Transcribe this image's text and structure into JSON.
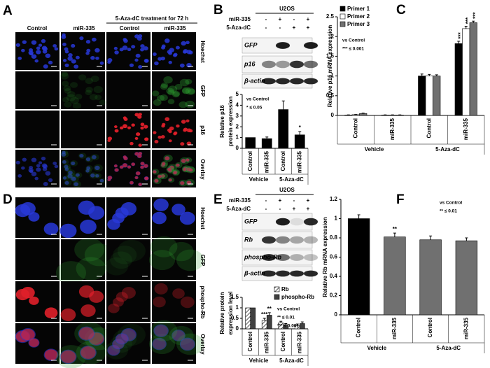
{
  "panel_labels": [
    "A",
    "B",
    "C",
    "D",
    "E",
    "F"
  ],
  "panel_a": {
    "column_labels": [
      "Control",
      "miR-335",
      "Control",
      "miR-335"
    ],
    "treatment_label": "5-Aza-dC treatment for 72 h",
    "row_labels": [
      "Hoechst",
      "GFP",
      "p16",
      "Overlay"
    ]
  },
  "panel_b": {
    "cell_line": "U2OS",
    "conditions": [
      {
        "name": "miR-335",
        "signs": [
          "-",
          "+",
          "-",
          "+"
        ]
      },
      {
        "name": "5-Aza-dC",
        "signs": [
          "-",
          "-",
          "+",
          "+"
        ]
      }
    ],
    "bands": [
      "GFP",
      "p16",
      "β-actin"
    ]
  },
  "panel_d": {
    "row_labels": [
      "Hoechst",
      "GFP",
      "phospho-Rb",
      "Overlay"
    ]
  },
  "panel_e": {
    "cell_line": "U2OS",
    "conditions": [
      {
        "name": "miR-335",
        "signs": [
          "-",
          "+",
          "-",
          "+"
        ]
      },
      {
        "name": "5-Aza-dC",
        "signs": [
          "-",
          "-",
          "+",
          "+"
        ]
      }
    ],
    "bands": [
      "GFP",
      "Rb",
      "phospho-Rb",
      "β-actin"
    ]
  },
  "chart_data": [
    {
      "type": "bar",
      "ylabel": [
        "Relative p16",
        "protein expression"
      ],
      "categories": [
        "Control",
        "miR-335",
        "Control",
        "miR-335"
      ],
      "groups": [
        "Vehicle",
        "5-Aza-dC"
      ],
      "values": [
        1,
        0.9,
        3.6,
        1.25
      ],
      "errors": [
        0,
        0.15,
        0.8,
        0.3
      ],
      "star_labels": [
        null,
        null,
        null,
        "*"
      ],
      "color": "#000000",
      "ylim": [
        0,
        5
      ],
      "yticks": [
        0,
        1,
        2,
        3,
        4,
        5
      ],
      "annotations": [
        "vs Control",
        "* ≤ 0.05"
      ]
    },
    {
      "type": "bar",
      "ylabel": [
        "Relative p16 mRNA expression"
      ],
      "categories": [
        "Control",
        "miR-335",
        "Control",
        "miR-335"
      ],
      "groups": [
        "Vehicle",
        "5-Aza-dC"
      ],
      "series": [
        {
          "name": "Primer 1",
          "color": "#000000",
          "values": [
            0.01,
            0.01,
            1.0,
            1.82
          ],
          "errors": [
            0.005,
            0.005,
            0.05,
            0.06
          ],
          "star_labels": [
            null,
            null,
            null,
            "***"
          ]
        },
        {
          "name": "Primer 2",
          "color": "#ffffff",
          "values": [
            0.02,
            0.01,
            1.0,
            2.2
          ],
          "errors": [
            0.005,
            0.005,
            0.04,
            0.06
          ],
          "star_labels": [
            null,
            null,
            null,
            "***"
          ]
        },
        {
          "name": "Primer 3",
          "color": "#707070",
          "values": [
            0.05,
            0.01,
            1.0,
            2.35
          ],
          "errors": [
            0.01,
            0.005,
            0.03,
            0.04
          ],
          "star_labels": [
            null,
            null,
            null,
            "***"
          ]
        }
      ],
      "ylim": [
        0,
        2.5
      ],
      "yticks": [
        0,
        0.5,
        1,
        1.5,
        2,
        2.5
      ],
      "legend": "upper left",
      "annotations": [
        "vs Control",
        "*** ≤ 0.001"
      ]
    },
    {
      "type": "bar",
      "ylabel": [
        "Relative protein",
        "expression level"
      ],
      "categories": [
        "Control",
        "miR-335",
        "Control",
        "miR-335"
      ],
      "groups": [
        "Vehicle",
        "5-Aza-dC"
      ],
      "series": [
        {
          "name": "Rb",
          "color": "#888888",
          "pattern": "hatch",
          "values": [
            1,
            0.4,
            0.28,
            0.15
          ],
          "errors": [
            0,
            0.1,
            0.08,
            0.08
          ],
          "star_labels": [
            null,
            "***",
            null,
            null
          ]
        },
        {
          "name": "phospho-Rb",
          "color": "#404040",
          "values": [
            1,
            0.65,
            0.2,
            0.25
          ],
          "errors": [
            0,
            0.12,
            0.05,
            0.08
          ],
          "star_labels": [
            null,
            "**",
            null,
            null
          ]
        }
      ],
      "ylim": [
        0,
        1.5
      ],
      "yticks": [
        0,
        0.5,
        1,
        1.5
      ],
      "legend": "upper right",
      "annotations": [
        "vs Control",
        "** ≤ 0.01",
        "*** ≤ 0.001"
      ]
    },
    {
      "type": "bar",
      "ylabel": [
        "Relative Rb mRNA expression"
      ],
      "categories": [
        "Control",
        "miR-335",
        "Control",
        "miR-335"
      ],
      "groups": [
        "Vehicle",
        "5-Aza-dC"
      ],
      "values": [
        1.0,
        0.81,
        0.78,
        0.77
      ],
      "errors": [
        0.04,
        0.04,
        0.04,
        0.03
      ],
      "star_labels": [
        null,
        "**",
        null,
        null
      ],
      "colors": [
        "#000000",
        "#707070",
        "#707070",
        "#707070"
      ],
      "ylim": [
        0,
        1.2
      ],
      "yticks": [
        0,
        0.2,
        0.4,
        0.6,
        0.8,
        1,
        1.2
      ],
      "annotations": [
        "vs Control",
        "** ≤ 0.01"
      ]
    }
  ]
}
